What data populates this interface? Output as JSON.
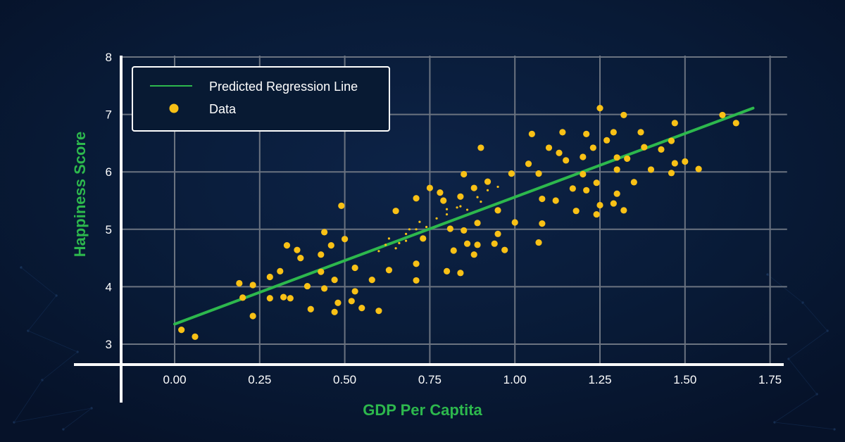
{
  "chart_data": {
    "type": "scatter",
    "xlabel": "GDP Per Captita",
    "ylabel": "Happiness Score",
    "xlim": [
      -0.25,
      1.8
    ],
    "ylim": [
      2.65,
      8.0
    ],
    "x_ticks": [
      "0.00",
      "0.25",
      "0.50",
      "0.75",
      "1.00",
      "1.25",
      "1.50",
      "1.75"
    ],
    "x_tick_values": [
      0,
      0.25,
      0.5,
      0.75,
      1.0,
      1.25,
      1.5,
      1.75
    ],
    "y_ticks": [
      "3",
      "4",
      "5",
      "6",
      "7",
      "8"
    ],
    "y_tick_values": [
      3,
      4,
      5,
      6,
      7,
      8
    ],
    "grid": true,
    "legend_position": "top-left",
    "colors": {
      "background": "#081a33",
      "grid": "#6b7380",
      "axis": "#ffffff",
      "label": "#2db84d",
      "tick_label": "#ffffff",
      "regression": "#2db84d",
      "points": "#f9c116"
    },
    "legend": [
      {
        "label": "Predicted Regression Line",
        "kind": "line"
      },
      {
        "label": "Data",
        "kind": "marker"
      }
    ],
    "series": [
      {
        "name": "Data",
        "kind": "scatter",
        "points": [
          [
            0.02,
            3.25
          ],
          [
            0.06,
            3.13
          ],
          [
            0.19,
            4.06
          ],
          [
            0.2,
            3.81
          ],
          [
            0.23,
            4.03
          ],
          [
            0.23,
            3.49
          ],
          [
            0.28,
            4.17
          ],
          [
            0.28,
            3.8
          ],
          [
            0.31,
            4.27
          ],
          [
            0.32,
            3.82
          ],
          [
            0.33,
            4.72
          ],
          [
            0.34,
            3.8
          ],
          [
            0.36,
            4.64
          ],
          [
            0.37,
            4.5
          ],
          [
            0.39,
            4.01
          ],
          [
            0.4,
            3.61
          ],
          [
            0.43,
            4.56
          ],
          [
            0.43,
            4.26
          ],
          [
            0.44,
            4.95
          ],
          [
            0.44,
            3.97
          ],
          [
            0.46,
            4.72
          ],
          [
            0.47,
            4.12
          ],
          [
            0.47,
            3.56
          ],
          [
            0.48,
            3.72
          ],
          [
            0.49,
            5.41
          ],
          [
            0.5,
            4.83
          ],
          [
            0.52,
            3.75
          ],
          [
            0.53,
            4.33
          ],
          [
            0.53,
            3.92
          ],
          [
            0.55,
            3.63
          ],
          [
            0.58,
            4.12
          ],
          [
            0.6,
            3.58
          ],
          [
            0.63,
            4.29
          ],
          [
            0.65,
            5.32
          ],
          [
            0.71,
            5.54
          ],
          [
            0.71,
            4.4
          ],
          [
            0.71,
            4.11
          ],
          [
            0.73,
            4.84
          ],
          [
            0.75,
            5.72
          ],
          [
            0.78,
            5.64
          ],
          [
            0.79,
            5.5
          ],
          [
            0.8,
            4.27
          ],
          [
            0.81,
            5.01
          ],
          [
            0.82,
            4.63
          ],
          [
            0.84,
            5.57
          ],
          [
            0.84,
            4.24
          ],
          [
            0.85,
            5.96
          ],
          [
            0.85,
            4.98
          ],
          [
            0.86,
            4.75
          ],
          [
            0.88,
            5.72
          ],
          [
            0.88,
            4.56
          ],
          [
            0.89,
            5.11
          ],
          [
            0.89,
            4.73
          ],
          [
            0.9,
            6.42
          ],
          [
            0.92,
            5.83
          ],
          [
            0.94,
            4.75
          ],
          [
            0.95,
            5.33
          ],
          [
            0.95,
            4.92
          ],
          [
            0.97,
            4.64
          ],
          [
            0.99,
            5.97
          ],
          [
            1.0,
            5.12
          ],
          [
            1.04,
            6.14
          ],
          [
            1.05,
            6.66
          ],
          [
            1.07,
            5.97
          ],
          [
            1.07,
            4.77
          ],
          [
            1.08,
            5.53
          ],
          [
            1.08,
            5.1
          ],
          [
            1.1,
            6.42
          ],
          [
            1.12,
            5.5
          ],
          [
            1.13,
            6.33
          ],
          [
            1.14,
            6.69
          ],
          [
            1.15,
            6.2
          ],
          [
            1.17,
            5.71
          ],
          [
            1.18,
            5.32
          ],
          [
            1.2,
            6.26
          ],
          [
            1.2,
            5.96
          ],
          [
            1.21,
            6.66
          ],
          [
            1.21,
            5.68
          ],
          [
            1.23,
            6.42
          ],
          [
            1.24,
            5.81
          ],
          [
            1.24,
            5.26
          ],
          [
            1.25,
            7.11
          ],
          [
            1.25,
            5.42
          ],
          [
            1.27,
            6.55
          ],
          [
            1.29,
            6.69
          ],
          [
            1.29,
            5.45
          ],
          [
            1.3,
            6.25
          ],
          [
            1.3,
            6.04
          ],
          [
            1.3,
            5.62
          ],
          [
            1.32,
            6.99
          ],
          [
            1.32,
            5.33
          ],
          [
            1.33,
            6.23
          ],
          [
            1.35,
            5.82
          ],
          [
            1.37,
            6.69
          ],
          [
            1.38,
            6.43
          ],
          [
            1.4,
            6.04
          ],
          [
            1.43,
            6.39
          ],
          [
            1.46,
            6.54
          ],
          [
            1.46,
            5.98
          ],
          [
            1.47,
            6.15
          ],
          [
            1.47,
            6.85
          ],
          [
            1.5,
            6.18
          ],
          [
            1.54,
            6.05
          ],
          [
            1.61,
            6.99
          ],
          [
            1.65,
            6.85
          ]
        ]
      },
      {
        "name": "Data",
        "kind": "small-dots",
        "points": [
          [
            0.6,
            4.62
          ],
          [
            0.62,
            4.73
          ],
          [
            0.63,
            4.84
          ],
          [
            0.65,
            4.67
          ],
          [
            0.66,
            4.76
          ],
          [
            0.68,
            4.92
          ],
          [
            0.68,
            4.8
          ],
          [
            0.69,
            5.0
          ],
          [
            0.71,
            5.0
          ],
          [
            0.72,
            5.13
          ],
          [
            0.74,
            5.04
          ],
          [
            0.77,
            5.19
          ],
          [
            0.8,
            5.26
          ],
          [
            0.8,
            5.35
          ],
          [
            0.83,
            5.38
          ],
          [
            0.84,
            5.4
          ],
          [
            0.86,
            5.34
          ],
          [
            0.89,
            5.56
          ],
          [
            0.9,
            5.48
          ],
          [
            0.92,
            5.68
          ],
          [
            0.95,
            5.74
          ]
        ]
      },
      {
        "name": "Predicted Regression Line",
        "kind": "line",
        "points": [
          [
            0.0,
            3.35
          ],
          [
            1.7,
            7.11
          ]
        ]
      }
    ]
  }
}
